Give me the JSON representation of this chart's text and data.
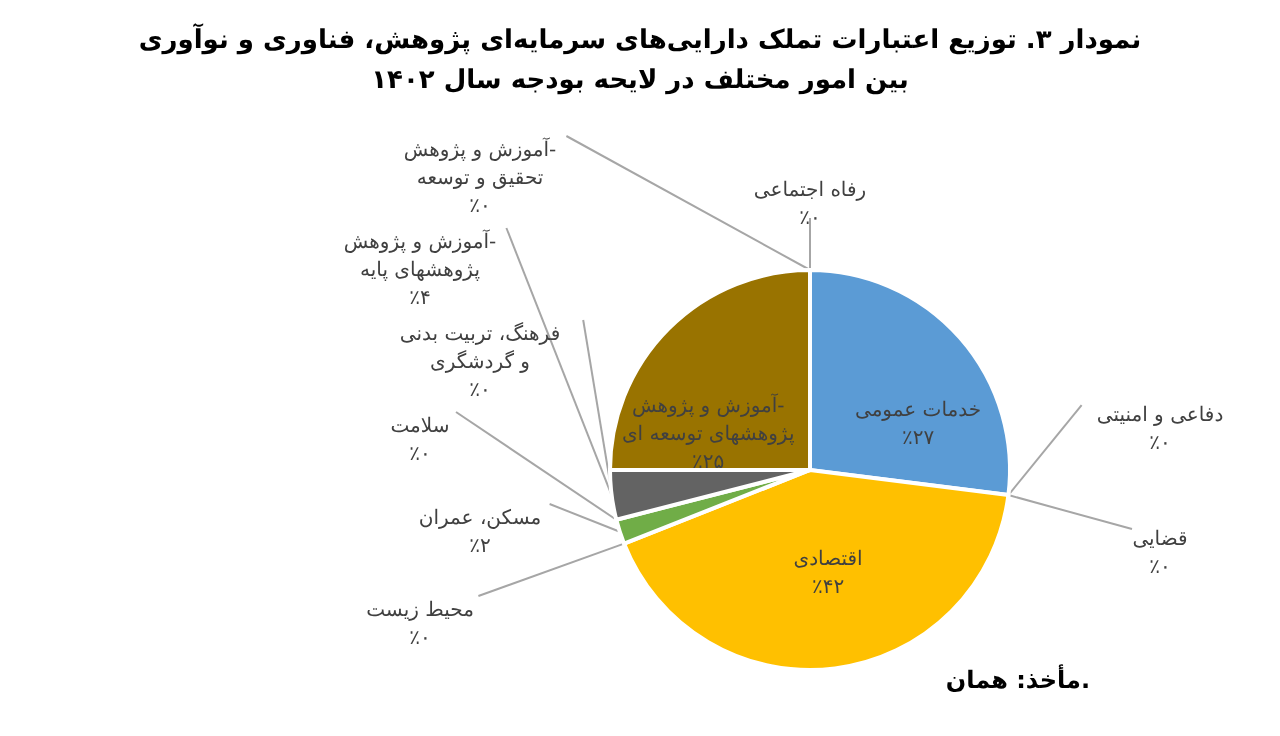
{
  "chart_data": {
    "type": "pie",
    "title": "نمودار ۳. توزیع اعتبارات تملک دارایی‌های سرمایه‌ای پژوهش، فناوری و نوآوری بین امور مختلف در لایحه بودجه سال ۱۴۰۲",
    "categories": [
      "خدمات عمومی",
      "دفاعی و امنیتی",
      "قضایی",
      "اقتصادی",
      "محیط زیست",
      "مسکن، عمران",
      "سلامت",
      "فرهنگ، تربیت بدنی و گردشگری",
      "آموزش و پژوهش- پژوهشهای پایه",
      "آموزش و پژوهش- پژوهشهای توسعه ای",
      "آموزش و پژوهش- تحقیق و توسعه",
      "رفاه اجتماعی"
    ],
    "values": [
      27,
      0,
      0,
      42,
      0,
      2,
      0,
      0,
      4,
      25,
      0,
      0
    ],
    "colors": [
      "#5b9bd5",
      "#ed7d31",
      "#a5a5a5",
      "#ffc000",
      "#4472c4",
      "#70ad47",
      "#264478",
      "#9e480e",
      "#636363",
      "#997300",
      "#255e91",
      "#43682b"
    ],
    "value_labels": [
      "٪۲۷",
      "٪۰",
      "٪۰",
      "٪۴۲",
      "٪۰",
      "٪۲",
      "٪۰",
      "٪۰",
      "٪۴",
      "٪۲۵",
      "٪۰",
      "٪۰"
    ],
    "legend": false,
    "annotations": [
      "مأخذ: همان."
    ]
  }
}
